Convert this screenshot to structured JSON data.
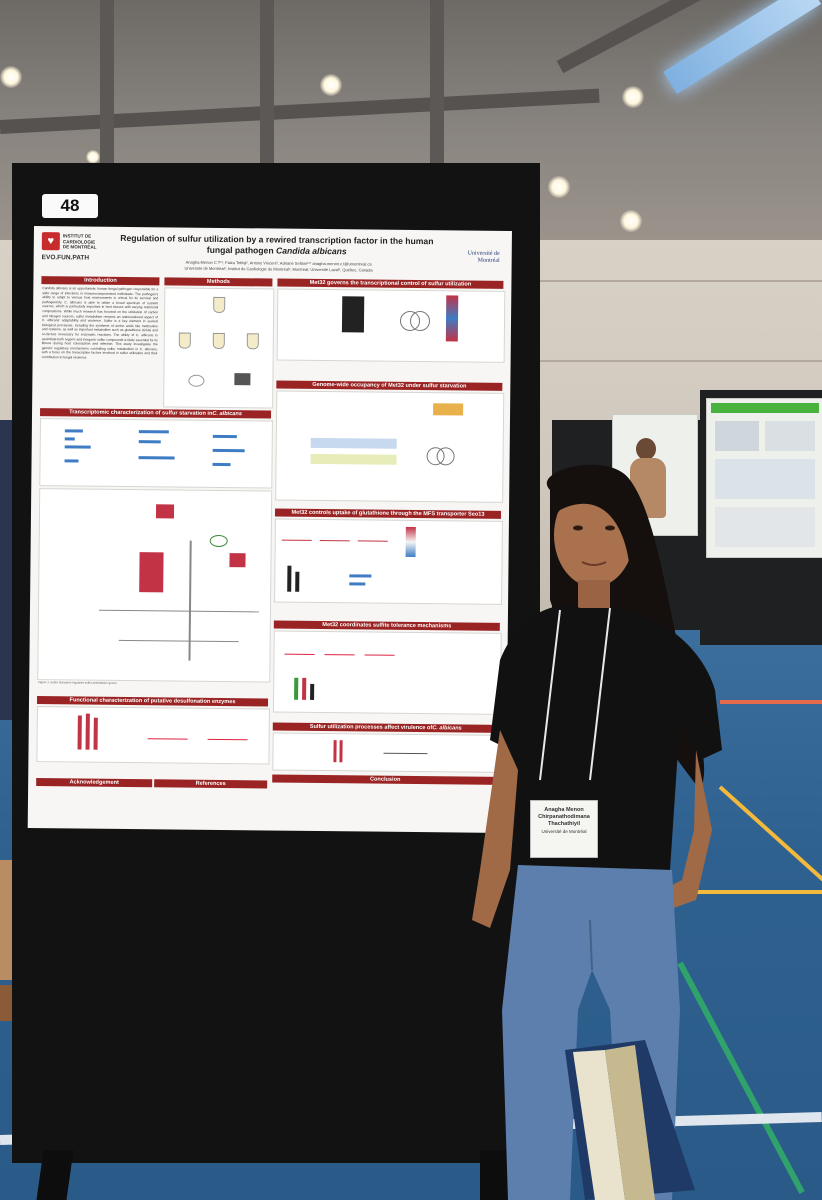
{
  "booth": {
    "number": "48"
  },
  "poster": {
    "title_line1": "Regulation of sulfur utilization by a rewired transcription factor in the human",
    "title_line2_prefix": "fungal pathogen ",
    "title_line2_species": "Candida albicans",
    "authors": "Anagha Menon C T¹², Faiza Tebbji¹, Antony Vincent¹, Adnane Sellam¹²* anagha.menon.c.t@umontreal.ca",
    "affiliations": "Université de Montréal¹, Institut de Cardiologie de Montréal², Montréal; Université Laval³, Québec, Canada",
    "logo_icm_line1": "INSTITUT DE",
    "logo_icm_line2": "CARDIOLOGIE",
    "logo_icm_line3": "DE MONTRÉAL",
    "logo_evo": "EVO.FUN.PATH",
    "logo_udem": "Université de Montréal",
    "sections": {
      "introduction": "Introduction",
      "methods": "Methods",
      "met32_control": "Met32 governs the transcriptional control of sulfur utilization",
      "genome_wide": "Genome-wide occupancy of Met32 under sulfur starvation",
      "transcriptomic_prefix": "Transcriptomic characterization of sulfur starvation in ",
      "transcriptomic_species": "C. albicans",
      "glutathione": "Met32 controls uptake of glutathione through the MFS transporter Seo13",
      "sulfite": "Met32 coordinates sulfite tolerance mechanisms",
      "desulfonation": "Functional characterization of putative desulfonation enzymes",
      "virulence_prefix": "Sulfur utilization processes affect virulence of ",
      "virulence_species": "C. albicans",
      "acknowledgement": "Acknowledgement",
      "references": "References",
      "conclusion": "Conclusion"
    },
    "intro_text": "Candida albicans is an opportunistic human fungal pathogen responsible for a wide range of infections in immunocompromised individuals. The pathogen's ability to adapt to various host environments is critical for its survival and pathogenicity. C. albicans is able to utilize a broad spectrum of nutrient sources, which is particularly important in host tissues with varying nutritional compositions. While much research has focused on the utilization of carbon and nitrogen sources, sulfur metabolism remains an underexplored aspect of C. albicans' adaptability and virulence. Sulfur is a key element in several biological processes, including the synthesis of amino acids like methionine and cysteine, as well as important metabolites such as glutathione (GSH) and co-factors necessary for enzymatic reactions. The ability of C. albicans to assimilate both organic and inorganic sulfur compounds is likely essential for its fitness during host colonization and infection. This study investigates the genetic regulatory mechanisms controlling sulfur metabolism in C. albicans, with a focus on the transcription factors involved in sulfur utilization and their contribution to fungal virulence."
  },
  "badge": {
    "line1": "Anagha Menon",
    "line2": "Chirpanathodimana",
    "line3": "Thachathiyil",
    "line4": "Université de Montréal"
  },
  "colors": {
    "section_header": "#9a2424",
    "floor": "#2f6190",
    "floor_line_yellow": "#f2b93b",
    "floor_line_green": "#2fa36b"
  }
}
